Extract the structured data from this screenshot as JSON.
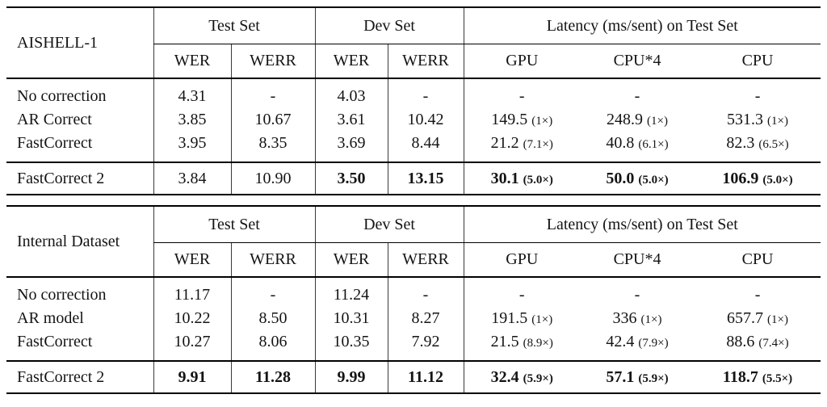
{
  "colors": {
    "background": "#ffffff",
    "text": "#141414",
    "rule": "#000000",
    "divider": "#3a3a3a"
  },
  "tables": [
    {
      "dataset_label": "AISHELL-1",
      "group_headers": {
        "test": "Test Set",
        "dev": "Dev Set",
        "latency": "Latency (ms/sent) on Test Set"
      },
      "sub_headers": [
        "WER",
        "WERR",
        "WER",
        "WERR",
        "GPU",
        "CPU*4",
        "CPU"
      ],
      "body_rows": [
        {
          "label": "No correction",
          "cells": [
            {
              "t": "4.31"
            },
            {
              "t": "-"
            },
            {
              "t": "4.03"
            },
            {
              "t": "-"
            },
            {
              "t": "-"
            },
            {
              "t": "-"
            },
            {
              "t": "-"
            }
          ]
        },
        {
          "label": "AR Correct",
          "cells": [
            {
              "t": "3.85"
            },
            {
              "t": "10.67"
            },
            {
              "t": "3.61"
            },
            {
              "t": "10.42"
            },
            {
              "t": "149.5",
              "m": "(1×)"
            },
            {
              "t": "248.9",
              "m": "(1×)"
            },
            {
              "t": "531.3",
              "m": "(1×)"
            }
          ]
        },
        {
          "label": "FastCorrect",
          "cells": [
            {
              "t": "3.95"
            },
            {
              "t": "8.35"
            },
            {
              "t": "3.69"
            },
            {
              "t": "8.44"
            },
            {
              "t": "21.2",
              "m": "(7.1×)"
            },
            {
              "t": "40.8",
              "m": "(6.1×)"
            },
            {
              "t": "82.3",
              "m": "(6.5×)"
            }
          ]
        }
      ],
      "highlight_row": {
        "label": "FastCorrect 2",
        "cells": [
          {
            "t": "3.84"
          },
          {
            "t": "10.90"
          },
          {
            "t": "3.50",
            "b": true
          },
          {
            "t": "13.15",
            "b": true
          },
          {
            "t": "30.1",
            "m": "(5.0×)",
            "b": true
          },
          {
            "t": "50.0",
            "m": "(5.0×)",
            "b": true
          },
          {
            "t": "106.9",
            "m": "(5.0×)",
            "b": true
          }
        ]
      }
    },
    {
      "dataset_label": "Internal Dataset",
      "group_headers": {
        "test": "Test Set",
        "dev": "Dev Set",
        "latency": "Latency (ms/sent) on Test Set"
      },
      "sub_headers": [
        "WER",
        "WERR",
        "WER",
        "WERR",
        "GPU",
        "CPU*4",
        "CPU"
      ],
      "body_rows": [
        {
          "label": "No correction",
          "cells": [
            {
              "t": "11.17"
            },
            {
              "t": "-"
            },
            {
              "t": "11.24"
            },
            {
              "t": "-"
            },
            {
              "t": "-"
            },
            {
              "t": "-"
            },
            {
              "t": "-"
            }
          ]
        },
        {
          "label": "AR model",
          "cells": [
            {
              "t": "10.22"
            },
            {
              "t": "8.50"
            },
            {
              "t": "10.31"
            },
            {
              "t": "8.27"
            },
            {
              "t": "191.5",
              "m": "(1×)"
            },
            {
              "t": "336",
              "m": "(1×)"
            },
            {
              "t": "657.7",
              "m": "(1×)"
            }
          ]
        },
        {
          "label": "FastCorrect",
          "cells": [
            {
              "t": "10.27"
            },
            {
              "t": "8.06"
            },
            {
              "t": "10.35"
            },
            {
              "t": "7.92"
            },
            {
              "t": "21.5",
              "m": "(8.9×)"
            },
            {
              "t": "42.4",
              "m": "(7.9×)"
            },
            {
              "t": "88.6",
              "m": "(7.4×)"
            }
          ]
        }
      ],
      "highlight_row": {
        "label": "FastCorrect 2",
        "cells": [
          {
            "t": "9.91",
            "b": true
          },
          {
            "t": "11.28",
            "b": true
          },
          {
            "t": "9.99",
            "b": true
          },
          {
            "t": "11.12",
            "b": true
          },
          {
            "t": "32.4",
            "m": "(5.9×)",
            "b": true
          },
          {
            "t": "57.1",
            "m": "(5.9×)",
            "b": true
          },
          {
            "t": "118.7",
            "m": "(5.5×)",
            "b": true
          }
        ]
      }
    }
  ]
}
